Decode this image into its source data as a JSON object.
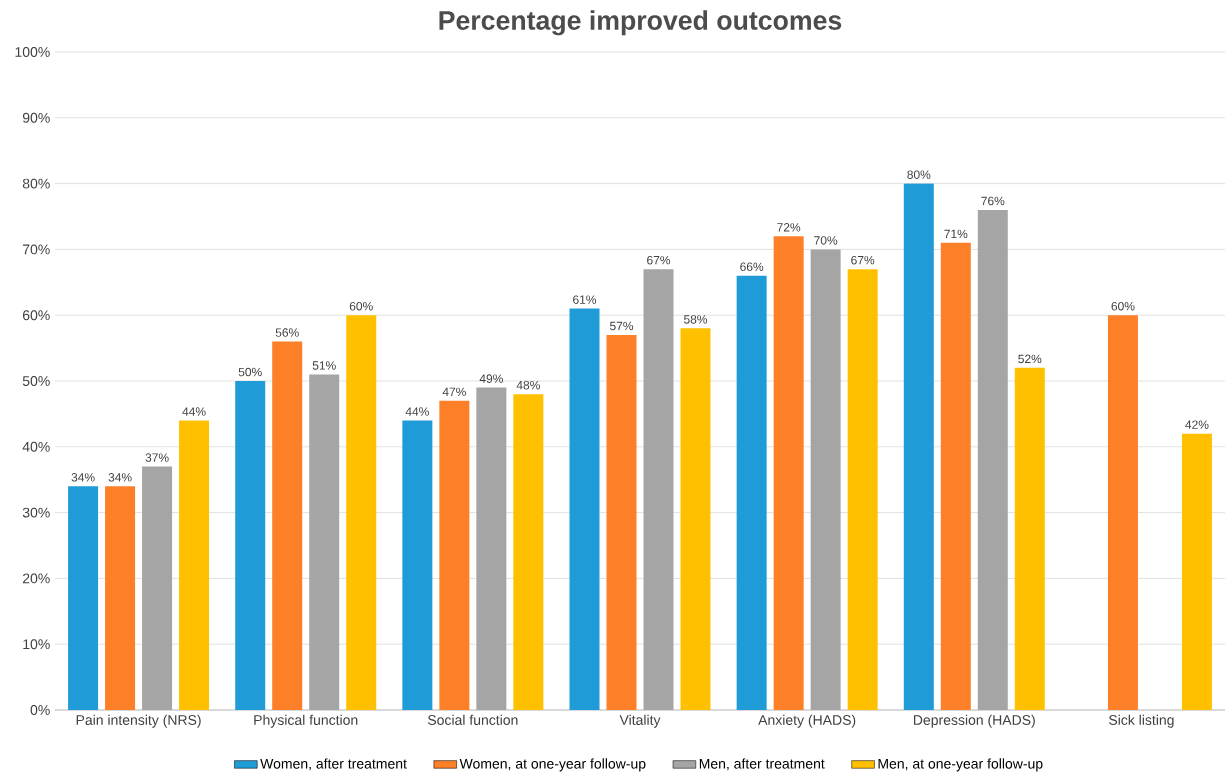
{
  "chart_data": {
    "type": "bar",
    "title": "Percentage improved outcomes",
    "categories": [
      "Pain intensity (NRS)",
      "Physical function",
      "Social function",
      "Vitality",
      "Anxiety (HADS)",
      "Depression (HADS)",
      "Sick listing"
    ],
    "series": [
      {
        "name": "Women, after treatment",
        "color": "#1f9bd7",
        "values": [
          34,
          50,
          44,
          61,
          66,
          80,
          null
        ],
        "value_labels": [
          "34%",
          "50%",
          "44%",
          "61%",
          "66%",
          "80%",
          null
        ]
      },
      {
        "name": "Women, at one-year follow-up",
        "color": "#fd7f28",
        "values": [
          34,
          56,
          47,
          57,
          72,
          71,
          60
        ],
        "value_labels": [
          "34%",
          "56%",
          "47%",
          "57%",
          "72%",
          "71%",
          "60%"
        ]
      },
      {
        "name": "Men, after treatment",
        "color": "#a5a5a5",
        "values": [
          37,
          51,
          49,
          67,
          70,
          76,
          null
        ],
        "value_labels": [
          "37%",
          "51%",
          "49%",
          "67%",
          "70%",
          "76%",
          null
        ]
      },
      {
        "name": "Men, at one-year follow-up",
        "color": "#ffc000",
        "values": [
          44,
          60,
          48,
          58,
          67,
          52,
          42
        ],
        "value_labels": [
          "44%",
          "60%",
          "48%",
          "58%",
          "67%",
          "52%",
          "42%"
        ]
      }
    ],
    "ylim": [
      0,
      100
    ],
    "yticks": [
      {
        "value": 0,
        "label": "0%"
      },
      {
        "value": 10,
        "label": "10%"
      },
      {
        "value": 20,
        "label": "20%"
      },
      {
        "value": 30,
        "label": "30%"
      },
      {
        "value": 40,
        "label": "40%"
      },
      {
        "value": 50,
        "label": "50%"
      },
      {
        "value": 60,
        "label": "60%"
      },
      {
        "value": 70,
        "label": "70%"
      },
      {
        "value": 80,
        "label": "80%"
      },
      {
        "value": 90,
        "label": "90%"
      },
      {
        "value": 100,
        "label": "100%"
      }
    ],
    "grid": "y",
    "legend": "bottom"
  }
}
